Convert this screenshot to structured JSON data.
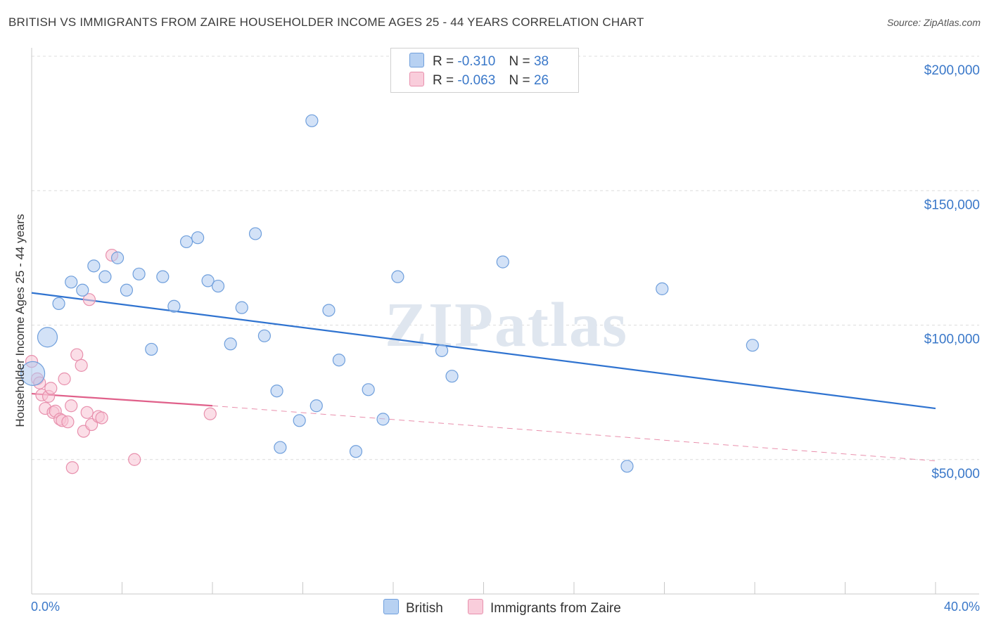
{
  "title": "BRITISH VS IMMIGRANTS FROM ZAIRE HOUSEHOLDER INCOME AGES 25 - 44 YEARS CORRELATION CHART",
  "source": "Source: ZipAtlas.com",
  "watermark": "ZIPatlas",
  "legend": {
    "british": {
      "r_label": "R =",
      "r_value": "-0.310",
      "n_label": "N =",
      "n_value": "38"
    },
    "zaire": {
      "r_label": "R =",
      "r_value": "-0.063",
      "n_label": "N =",
      "n_value": "26"
    }
  },
  "bottom_legend": {
    "british": "British",
    "zaire": "Immigrants from Zaire"
  },
  "colors": {
    "british_fill": "#aecbf0",
    "british_stroke": "#6f9fdc",
    "british_line": "#2f73d0",
    "zaire_fill": "#f7c3d4",
    "zaire_stroke": "#e890ad",
    "zaire_line": "#e0608a",
    "grid": "#dcdcdc",
    "tick_text": "#3a78c9"
  },
  "chart_data": {
    "type": "scatter",
    "title": "BRITISH VS IMMIGRANTS FROM ZAIRE HOUSEHOLDER INCOME AGES 25 - 44 YEARS CORRELATION CHART",
    "xlabel": "",
    "ylabel": "Householder Income Ages 25 - 44 years",
    "xlim": [
      0,
      40
    ],
    "ylim": [
      0,
      205000
    ],
    "x_tick_labels": [
      "0.0%",
      "40.0%"
    ],
    "y_ticks": [
      {
        "value": 200000,
        "label": "$200,000"
      },
      {
        "value": 150000,
        "label": "$150,000"
      },
      {
        "value": 100000,
        "label": "$100,000"
      },
      {
        "value": 50000,
        "label": "$50,000"
      }
    ],
    "series": [
      {
        "name": "British",
        "r": -0.31,
        "n": 38,
        "trend": {
          "x0": 0,
          "y0": 112000,
          "x1": 40,
          "y1": 69000,
          "extended": false
        },
        "points": [
          {
            "x": 0.05,
            "y": 82000,
            "big": 2
          },
          {
            "x": 0.7,
            "y": 95500,
            "big": 1
          },
          {
            "x": 1.2,
            "y": 108000
          },
          {
            "x": 1.75,
            "y": 116000
          },
          {
            "x": 2.25,
            "y": 113000
          },
          {
            "x": 2.75,
            "y": 122000
          },
          {
            "x": 3.25,
            "y": 118000
          },
          {
            "x": 3.8,
            "y": 125000
          },
          {
            "x": 4.2,
            "y": 113000
          },
          {
            "x": 4.75,
            "y": 119000
          },
          {
            "x": 5.3,
            "y": 91000
          },
          {
            "x": 5.8,
            "y": 118000
          },
          {
            "x": 6.3,
            "y": 107000
          },
          {
            "x": 6.85,
            "y": 131000
          },
          {
            "x": 7.35,
            "y": 132500
          },
          {
            "x": 7.8,
            "y": 116500
          },
          {
            "x": 8.25,
            "y": 114500
          },
          {
            "x": 8.8,
            "y": 93000
          },
          {
            "x": 9.3,
            "y": 106500
          },
          {
            "x": 9.9,
            "y": 134000
          },
          {
            "x": 10.3,
            "y": 96000
          },
          {
            "x": 10.85,
            "y": 75500
          },
          {
            "x": 11.0,
            "y": 54500
          },
          {
            "x": 11.85,
            "y": 64500
          },
          {
            "x": 12.4,
            "y": 176000
          },
          {
            "x": 12.6,
            "y": 70000
          },
          {
            "x": 13.15,
            "y": 105500
          },
          {
            "x": 13.6,
            "y": 87000
          },
          {
            "x": 14.35,
            "y": 53000
          },
          {
            "x": 14.9,
            "y": 76000
          },
          {
            "x": 15.55,
            "y": 65000
          },
          {
            "x": 16.2,
            "y": 118000
          },
          {
            "x": 18.15,
            "y": 90500
          },
          {
            "x": 18.6,
            "y": 81000
          },
          {
            "x": 20.85,
            "y": 123500
          },
          {
            "x": 26.35,
            "y": 47500
          },
          {
            "x": 27.9,
            "y": 113500
          },
          {
            "x": 31.9,
            "y": 92500
          }
        ]
      },
      {
        "name": "Immigrants from Zaire",
        "r": -0.063,
        "n": 26,
        "trend": {
          "x0": 0,
          "y0": 74500,
          "x1": 8,
          "y1": 70000,
          "extended": true,
          "x_end": 40,
          "y_end": 49500
        },
        "points": [
          {
            "x": 0.0,
            "y": 86500
          },
          {
            "x": 0.25,
            "y": 80000
          },
          {
            "x": 0.35,
            "y": 78500
          },
          {
            "x": 0.45,
            "y": 74000
          },
          {
            "x": 0.6,
            "y": 69000
          },
          {
            "x": 0.75,
            "y": 73500
          },
          {
            "x": 0.85,
            "y": 76500
          },
          {
            "x": 0.95,
            "y": 67500
          },
          {
            "x": 1.05,
            "y": 68000
          },
          {
            "x": 1.25,
            "y": 65000
          },
          {
            "x": 1.35,
            "y": 64500
          },
          {
            "x": 1.45,
            "y": 80000
          },
          {
            "x": 1.6,
            "y": 64000
          },
          {
            "x": 1.75,
            "y": 70000
          },
          {
            "x": 1.8,
            "y": 47000
          },
          {
            "x": 2.0,
            "y": 89000
          },
          {
            "x": 2.2,
            "y": 85000
          },
          {
            "x": 2.3,
            "y": 60500
          },
          {
            "x": 2.45,
            "y": 67500
          },
          {
            "x": 2.55,
            "y": 109500
          },
          {
            "x": 2.65,
            "y": 63000
          },
          {
            "x": 2.95,
            "y": 66000
          },
          {
            "x": 3.1,
            "y": 65500
          },
          {
            "x": 3.55,
            "y": 126000
          },
          {
            "x": 4.55,
            "y": 50000
          },
          {
            "x": 7.9,
            "y": 67000
          }
        ]
      }
    ]
  }
}
